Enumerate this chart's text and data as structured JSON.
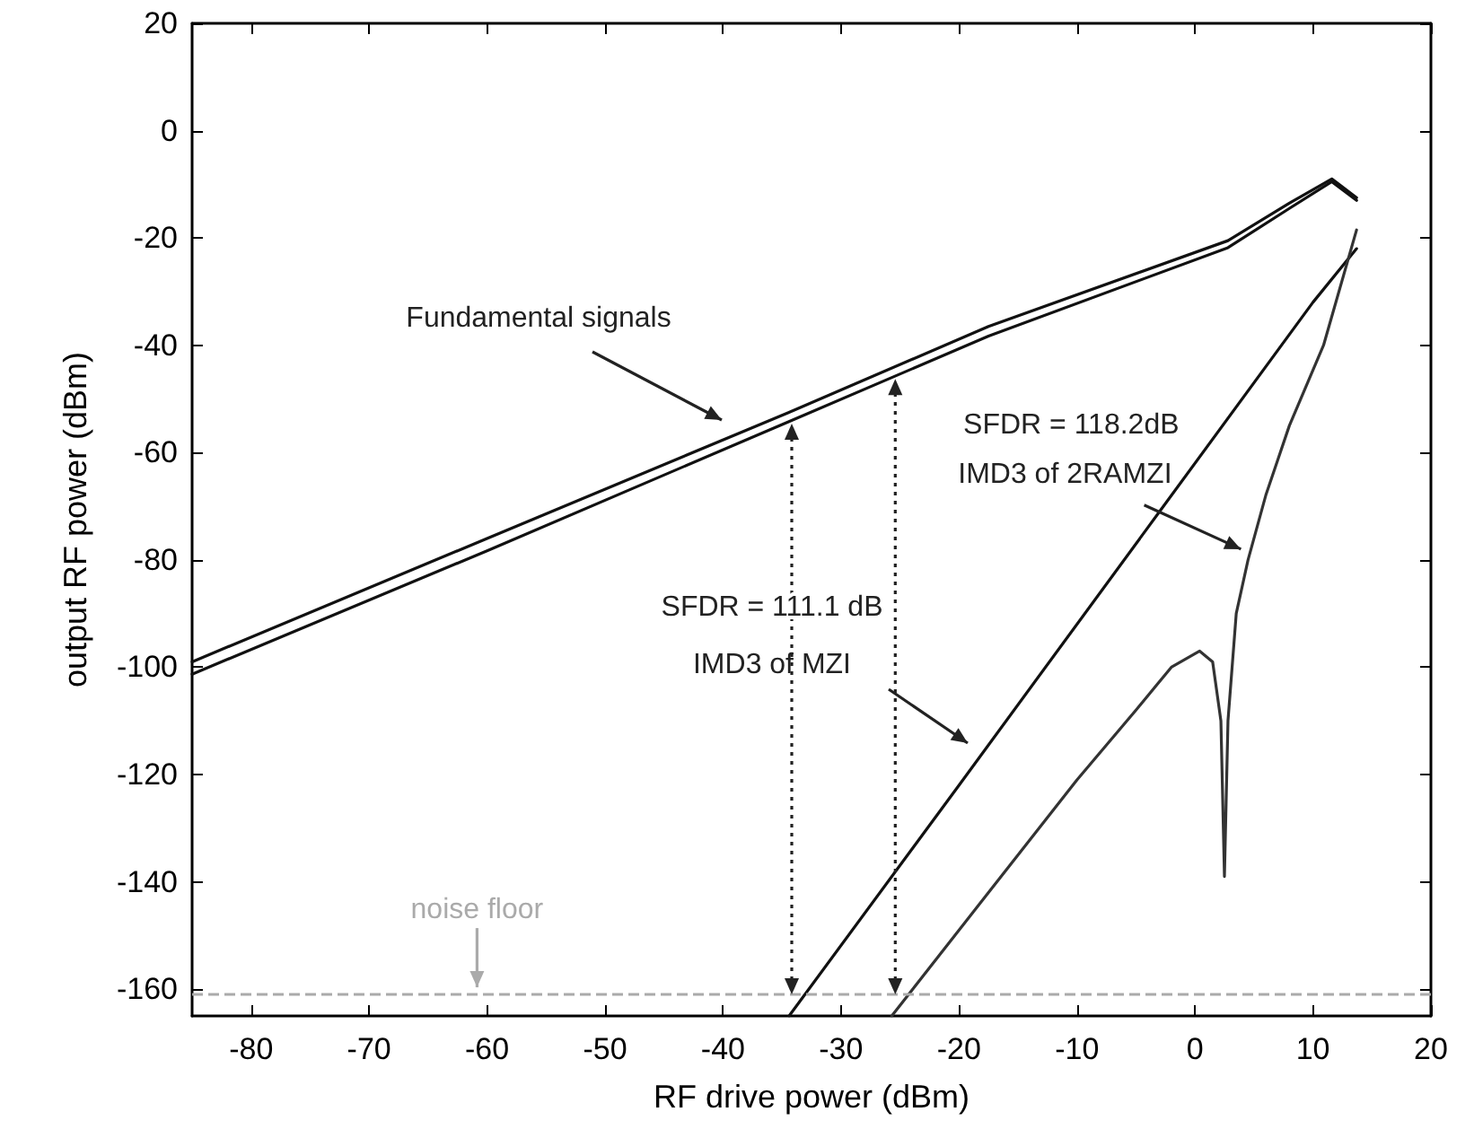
{
  "chart_data": {
    "type": "line",
    "xlabel": "RF drive power (dBm)",
    "ylabel": "output RF power (dBm)",
    "xlim": [
      -85,
      20
    ],
    "xticks": [
      -80,
      -70,
      -60,
      -50,
      -40,
      -30,
      -20,
      -10,
      0,
      10,
      20
    ],
    "ylim": [
      -165,
      20
    ],
    "yticks": [
      -160,
      -140,
      -120,
      -100,
      -80,
      -60,
      -40,
      -20,
      0,
      20
    ],
    "marker": "none",
    "line_style": "solid",
    "series": [
      {
        "color": "#111111",
        "x": [
          -85,
          -60,
          -34.5,
          -17.5,
          2.8,
          8,
          11.6,
          13.7
        ],
        "values": [
          -99,
          -76,
          -52.6,
          -36.5,
          -20.5,
          -13.5,
          -9,
          -12.5
        ]
      },
      {
        "color": "#111111",
        "x": [
          -85,
          -60,
          -34.5,
          -17.5,
          2.8,
          8,
          11.6,
          13.7
        ],
        "values": [
          -101.3,
          -78.3,
          -54.3,
          -38.3,
          -21.8,
          -14.5,
          -9.5,
          -13
        ]
      },
      {
        "color": "#111111",
        "x": [
          -34.4,
          -20,
          -3,
          10,
          13.7
        ],
        "values": [
          -165,
          -122,
          -71,
          -32,
          -22
        ]
      },
      {
        "color": "#333333",
        "x": [
          -25.7,
          -17.5,
          -10,
          -5,
          -2,
          0.4,
          1.5,
          2.2,
          2.5,
          2.8,
          3.5,
          4.5,
          6,
          8,
          10.9,
          13.7
        ],
        "values": [
          -165,
          -142,
          -121,
          -108,
          -100,
          -97,
          -99,
          -110,
          -139,
          -110,
          -90,
          -80,
          -68,
          -55,
          -40,
          -18.5
        ]
      }
    ],
    "ref_lines": [
      {
        "axis": "y",
        "value": -161,
        "label": "noise floor",
        "color": "#aaaaaa",
        "line_style": "dashed"
      }
    ],
    "annotations": [
      "Fundamental signals",
      {
        "text": "SFDR = 118.2dB",
        "x": -25.4,
        "y": -46.3
      },
      {
        "text": "IMD3 of 2RAMZI",
        "x": 3.9,
        "y": -78
      },
      "SFDR = 111.1 dB",
      "IMD3 of MZI"
    ]
  }
}
